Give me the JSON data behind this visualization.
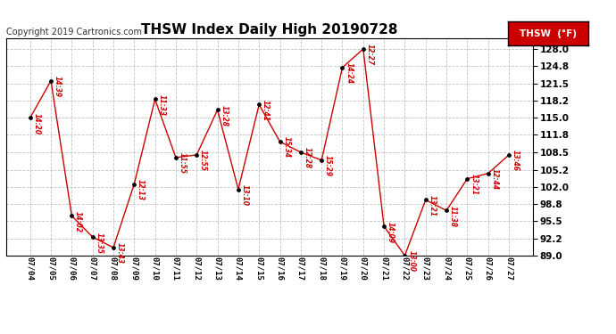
{
  "title": "THSW Index Daily High 20190728",
  "copyright": "Copyright 2019 Cartronics.com",
  "legend_label": "THSW  (°F)",
  "dates": [
    "07/04",
    "07/05",
    "07/06",
    "07/07",
    "07/08",
    "07/09",
    "07/10",
    "07/11",
    "07/12",
    "07/13",
    "07/14",
    "07/15",
    "07/16",
    "07/17",
    "07/18",
    "07/19",
    "07/20",
    "07/21",
    "07/22",
    "07/23",
    "07/24",
    "07/25",
    "07/26",
    "07/27"
  ],
  "values": [
    115.0,
    122.0,
    96.5,
    92.5,
    90.5,
    102.5,
    118.5,
    107.5,
    108.0,
    116.5,
    101.5,
    117.5,
    110.5,
    108.5,
    107.0,
    124.5,
    128.0,
    94.5,
    89.0,
    99.5,
    97.5,
    103.5,
    104.5,
    108.0
  ],
  "times": [
    "14:20",
    "14:39",
    "14:02",
    "13:35",
    "13:43",
    "12:13",
    "11:33",
    "11:55",
    "12:55",
    "13:28",
    "13:10",
    "12:41",
    "15:34",
    "12:28",
    "15:29",
    "14:24",
    "12:27",
    "14:09",
    "13:00",
    "13:21",
    "11:38",
    "13:21",
    "12:44",
    "13:46"
  ],
  "ylim": [
    89.0,
    130.0
  ],
  "yticks": [
    89.0,
    92.2,
    95.5,
    98.8,
    102.0,
    105.2,
    108.5,
    111.8,
    115.0,
    118.2,
    121.5,
    124.8,
    128.0
  ],
  "line_color": "#cc0000",
  "marker_color": "#000000",
  "label_color": "#cc0000",
  "bg_color": "#ffffff",
  "grid_color": "#bbbbbb",
  "title_fontsize": 11,
  "copyright_fontsize": 7,
  "legend_bg": "#cc0000",
  "legend_text_color": "#ffffff"
}
